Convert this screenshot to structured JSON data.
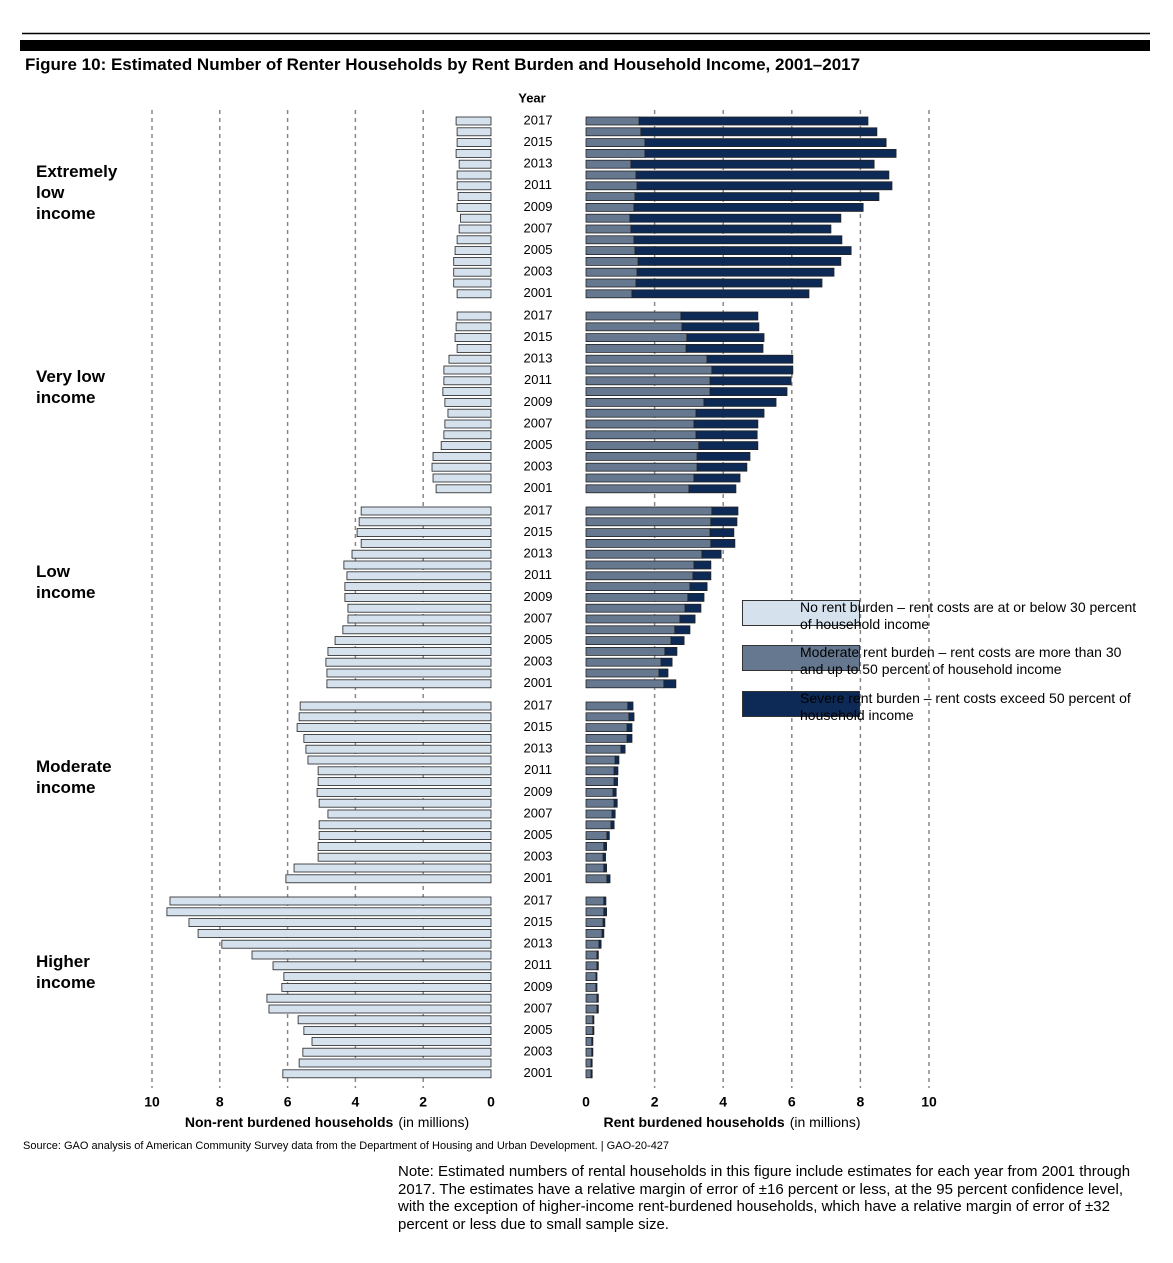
{
  "chart_data": {
    "type": "diverging_bar",
    "title": "Figure 10: Estimated Number of Renter Households by Rent Burden and Household Income, 2001–2017",
    "category_header": "Year",
    "categories": [
      "2017",
      null,
      "2015",
      null,
      "2013",
      null,
      "2011",
      null,
      "2009",
      null,
      "2007",
      null,
      "2005",
      null,
      "2003",
      null,
      "2001"
    ],
    "groups": [
      "Extremely\nlow\nincome",
      "Very low\nincome",
      "Low\nincome",
      "Moderate\nincome",
      "Higher\nincome"
    ],
    "left_axis": {
      "label": "Non-rent burdened households",
      "unit": "(in millions)",
      "xlim": [
        0,
        10
      ],
      "xticks": [
        0,
        2,
        4,
        6,
        8,
        10
      ]
    },
    "right_axis": {
      "label": "Rent burdened households",
      "unit": "(in millions)",
      "xlim": [
        0,
        10
      ],
      "xticks": [
        0,
        2,
        4,
        6,
        8,
        10
      ]
    },
    "grid": true,
    "series": [
      {
        "name": "No rent burden – rent costs are at or below 30 percent of household income",
        "color": "#d5e2ee",
        "side": "left",
        "values": [
          [
            1.03,
            1.0,
            1.0,
            1.03,
            0.94,
            1.0,
            1.0,
            0.97,
            1.0,
            0.9,
            0.94,
            1.0,
            1.06,
            1.1,
            1.1,
            1.1,
            1.0
          ],
          [
            1.0,
            1.03,
            1.06,
            1.0,
            1.24,
            1.39,
            1.39,
            1.42,
            1.36,
            1.27,
            1.36,
            1.39,
            1.47,
            1.71,
            1.74,
            1.71,
            1.62
          ],
          [
            3.83,
            3.89,
            3.95,
            3.83,
            4.1,
            4.34,
            4.25,
            4.31,
            4.31,
            4.22,
            4.22,
            4.37,
            4.6,
            4.81,
            4.87,
            4.84,
            4.84
          ],
          [
            5.63,
            5.66,
            5.72,
            5.52,
            5.46,
            5.4,
            5.1,
            5.1,
            5.13,
            5.07,
            4.81,
            5.07,
            5.07,
            5.1,
            5.1,
            5.81,
            6.05
          ],
          [
            9.47,
            9.56,
            8.91,
            8.64,
            7.94,
            7.05,
            6.43,
            6.11,
            6.17,
            6.61,
            6.55,
            5.69,
            5.52,
            5.28,
            5.55,
            5.66,
            6.14
          ]
        ]
      },
      {
        "name": "Moderate rent burden – rent costs are more than 30 and up to 50 percent of household income",
        "color": "#65788f",
        "side": "right",
        "values": [
          [
            1.55,
            1.6,
            1.72,
            1.72,
            1.31,
            1.46,
            1.49,
            1.43,
            1.4,
            1.28,
            1.31,
            1.4,
            1.43,
            1.52,
            1.49,
            1.46,
            1.34
          ],
          [
            2.77,
            2.8,
            2.94,
            2.92,
            3.53,
            3.67,
            3.62,
            3.62,
            3.44,
            3.21,
            3.15,
            3.21,
            3.29,
            3.24,
            3.24,
            3.15,
            3.0
          ],
          [
            3.67,
            3.64,
            3.62,
            3.64,
            3.38,
            3.15,
            3.12,
            3.03,
            2.97,
            2.89,
            2.74,
            2.59,
            2.48,
            2.3,
            2.19,
            2.13,
            2.27
          ],
          [
            1.22,
            1.25,
            1.2,
            1.2,
            1.02,
            0.85,
            0.82,
            0.82,
            0.79,
            0.82,
            0.76,
            0.73,
            0.61,
            0.52,
            0.5,
            0.52,
            0.61
          ],
          [
            0.52,
            0.52,
            0.5,
            0.47,
            0.38,
            0.32,
            0.32,
            0.29,
            0.29,
            0.32,
            0.32,
            0.2,
            0.2,
            0.17,
            0.17,
            0.15,
            0.15
          ]
        ]
      },
      {
        "name": "Severe rent burden – rent costs exceed 50 percent of household income",
        "color": "#0d2a56",
        "side": "right",
        "values": [
          [
            6.67,
            6.88,
            7.03,
            7.32,
            7.09,
            7.37,
            7.43,
            7.11,
            6.68,
            6.15,
            5.83,
            6.06,
            6.3,
            5.91,
            5.74,
            5.42,
            5.16
          ],
          [
            2.24,
            2.24,
            2.25,
            2.24,
            2.5,
            2.36,
            2.36,
            2.24,
            2.1,
            1.98,
            1.86,
            1.78,
            1.72,
            1.54,
            1.45,
            1.34,
            1.37
          ],
          [
            0.76,
            0.76,
            0.69,
            0.7,
            0.56,
            0.49,
            0.52,
            0.5,
            0.47,
            0.46,
            0.44,
            0.44,
            0.38,
            0.35,
            0.32,
            0.26,
            0.35
          ],
          [
            0.15,
            0.15,
            0.14,
            0.14,
            0.12,
            0.11,
            0.11,
            0.1,
            0.09,
            0.09,
            0.09,
            0.09,
            0.07,
            0.08,
            0.07,
            0.08,
            0.09
          ],
          [
            0.06,
            0.08,
            0.05,
            0.05,
            0.06,
            0.04,
            0.04,
            0.03,
            0.03,
            0.04,
            0.04,
            0.03,
            0.03,
            0.03,
            0.03,
            0.03,
            0.03
          ]
        ]
      }
    ],
    "source": "Source: GAO analysis of American Community Survey data from the Department of Housing and Urban Development.  |  GAO-20-427",
    "note": "Note: Estimated numbers of rental households in this figure include estimates for each year from 2001 through 2017. The estimates have a relative margin of error of ±16 percent or less, at the 95 percent confidence level, with the exception of higher-income rent-burdened households, which have a relative margin of error of ±32 percent or less due to small sample size."
  }
}
